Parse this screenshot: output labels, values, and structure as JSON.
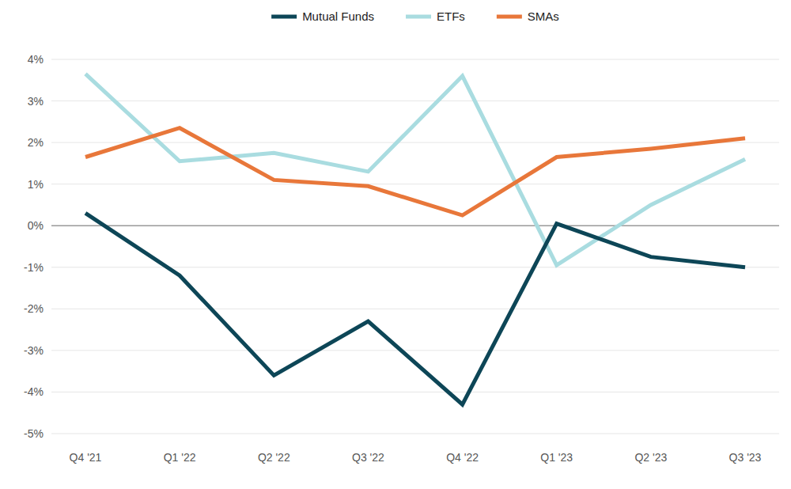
{
  "chart_data": {
    "type": "line",
    "categories": [
      "Q4 '21",
      "Q1 '22",
      "Q2 '22",
      "Q3 '22",
      "Q4 '22",
      "Q1 '23",
      "Q2 '23",
      "Q3 '23"
    ],
    "series": [
      {
        "name": "Mutual Funds",
        "color": "#0d4657",
        "values": [
          0.3,
          -1.2,
          -3.6,
          -2.3,
          -4.3,
          0.05,
          -0.75,
          -1.0
        ]
      },
      {
        "name": "ETFs",
        "color": "#a9dce0",
        "values": [
          3.65,
          1.55,
          1.75,
          1.3,
          3.6,
          -0.95,
          0.5,
          1.6
        ]
      },
      {
        "name": "SMAs",
        "color": "#e8773a",
        "values": [
          1.65,
          2.35,
          1.1,
          0.95,
          0.25,
          1.65,
          1.85,
          2.1
        ]
      }
    ],
    "ylim": [
      -5,
      4
    ],
    "yticks": [
      {
        "value": -5,
        "label": "-5%"
      },
      {
        "value": -4,
        "label": "-4%"
      },
      {
        "value": -3,
        "label": "-3%"
      },
      {
        "value": -2,
        "label": "-2%"
      },
      {
        "value": -1,
        "label": "-1%"
      },
      {
        "value": 0,
        "label": "0%"
      },
      {
        "value": 1,
        "label": "1%"
      },
      {
        "value": 2,
        "label": "2%"
      },
      {
        "value": 3,
        "label": "3%"
      },
      {
        "value": 4,
        "label": "4%"
      }
    ],
    "grid": true,
    "legend": "top"
  }
}
